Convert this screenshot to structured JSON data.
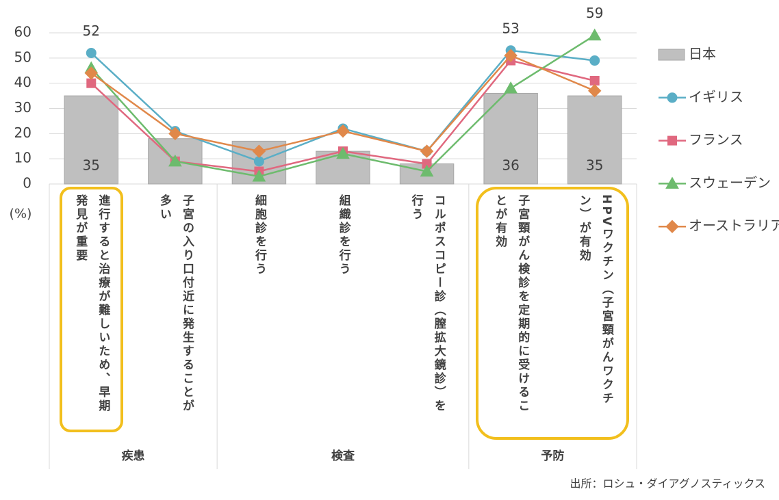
{
  "chart_data": {
    "type": "combo",
    "categories": [
      "進行すると治療が難しいため、早期発見が重要",
      "子宮の入り口付近に発生することが多い",
      "細胞診を行う",
      "組織診を行う",
      "コルポスコピー診（膣拡大鏡診）を行う",
      "子宮頸がん検診を定期的に受けることが有効",
      "HPVワクチン（子宮頸がんワクチン）が有効"
    ],
    "groups": [
      {
        "name": "疾患",
        "count": 2
      },
      {
        "name": "検査",
        "count": 3
      },
      {
        "name": "予防",
        "count": 2
      }
    ],
    "y_label": "(%)",
    "ylim": [
      0,
      60
    ],
    "yticks": [
      0,
      10,
      20,
      30,
      40,
      50,
      60
    ],
    "grid": true,
    "series": [
      {
        "name": "日本",
        "type": "bar",
        "color": "#bfbfbf",
        "values": [
          35,
          18,
          17,
          13,
          8,
          36,
          35
        ],
        "value_labels": [
          35,
          null,
          null,
          null,
          null,
          36,
          35
        ]
      },
      {
        "name": "イギリス",
        "type": "line",
        "marker": "circle",
        "color": "#5aaec6",
        "values": [
          52,
          21,
          9,
          22,
          13,
          53,
          49
        ],
        "value_labels": [
          52,
          null,
          null,
          null,
          null,
          53,
          null
        ]
      },
      {
        "name": "フランス",
        "type": "line",
        "marker": "square",
        "color": "#e0687f",
        "values": [
          40,
          9,
          5,
          13,
          8,
          49,
          41
        ]
      },
      {
        "name": "スウェーデン",
        "type": "line",
        "marker": "triangle",
        "color": "#6dbb6d",
        "values": [
          46,
          9,
          3,
          12,
          5,
          38,
          59
        ],
        "value_labels": [
          null,
          null,
          null,
          null,
          null,
          null,
          59
        ]
      },
      {
        "name": "オーストラリア",
        "type": "line",
        "marker": "diamond",
        "color": "#e0884a",
        "values": [
          44,
          20,
          13,
          21,
          13,
          51,
          37
        ]
      }
    ],
    "source": "出所：ロシュ・ダイアグノスティックス"
  }
}
